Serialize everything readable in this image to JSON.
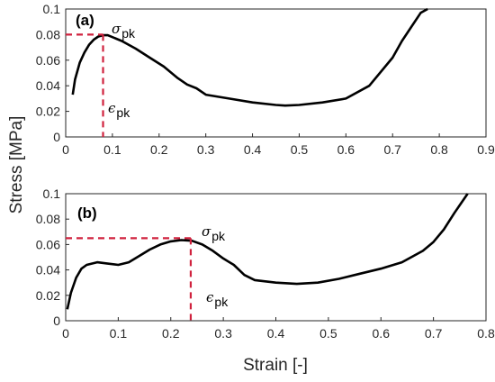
{
  "figure": {
    "ylabel": "Stress [MPa]",
    "xlabel": "Strain [-]"
  },
  "colors": {
    "curve": "#000000",
    "peak_marker": "#d0223e",
    "axis": "#262626"
  },
  "chart_data": [
    {
      "type": "line",
      "panel_label": "(a)",
      "xlim": [
        0,
        0.9
      ],
      "ylim": [
        0,
        0.1
      ],
      "xticks": [
        "0",
        "0.1",
        "0.2",
        "0.3",
        "0.4",
        "0.5",
        "0.6",
        "0.7",
        "0.8",
        "0.9"
      ],
      "yticks": [
        "0",
        "0.02",
        "0.04",
        "0.06",
        "0.08",
        "0.1"
      ],
      "xtick_values": [
        0,
        0.1,
        0.2,
        0.3,
        0.4,
        0.5,
        0.6,
        0.7,
        0.8,
        0.9
      ],
      "ytick_values": [
        0,
        0.02,
        0.04,
        0.06,
        0.08,
        0.1
      ],
      "grid": false,
      "series": [
        {
          "x": [
            0.015,
            0.02,
            0.03,
            0.04,
            0.05,
            0.06,
            0.07,
            0.08,
            0.09,
            0.1,
            0.12,
            0.15,
            0.18,
            0.21,
            0.24,
            0.26,
            0.28,
            0.3,
            0.35,
            0.4,
            0.45,
            0.47,
            0.5,
            0.55,
            0.6,
            0.65,
            0.7,
            0.72,
            0.74,
            0.76,
            0.775
          ],
          "y": [
            0.033,
            0.045,
            0.058,
            0.066,
            0.072,
            0.076,
            0.0785,
            0.0795,
            0.0795,
            0.078,
            0.075,
            0.069,
            0.062,
            0.055,
            0.046,
            0.041,
            0.038,
            0.033,
            0.03,
            0.027,
            0.025,
            0.0245,
            0.025,
            0.027,
            0.03,
            0.04,
            0.062,
            0.075,
            0.086,
            0.097,
            0.101
          ]
        }
      ],
      "peak": {
        "x": 0.08,
        "y": 0.08,
        "stress_label": "σ",
        "stress_sub": "pk",
        "strain_label": "ϵ",
        "strain_sub": "pk"
      }
    },
    {
      "type": "line",
      "panel_label": "(b)",
      "xlim": [
        0,
        0.8
      ],
      "ylim": [
        0,
        0.1
      ],
      "xticks": [
        "0",
        "0.1",
        "0.2",
        "0.3",
        "0.4",
        "0.5",
        "0.6",
        "0.7",
        "0.8"
      ],
      "yticks": [
        "0",
        "0.02",
        "0.04",
        "0.06",
        "0.08",
        "0.1"
      ],
      "xtick_values": [
        0,
        0.1,
        0.2,
        0.3,
        0.4,
        0.5,
        0.6,
        0.7,
        0.8
      ],
      "ytick_values": [
        0,
        0.02,
        0.04,
        0.06,
        0.08,
        0.1
      ],
      "grid": false,
      "series": [
        {
          "x": [
            0.003,
            0.01,
            0.02,
            0.03,
            0.04,
            0.06,
            0.08,
            0.1,
            0.12,
            0.14,
            0.16,
            0.18,
            0.2,
            0.22,
            0.24,
            0.26,
            0.28,
            0.3,
            0.32,
            0.34,
            0.36,
            0.4,
            0.44,
            0.48,
            0.52,
            0.56,
            0.6,
            0.64,
            0.68,
            0.7,
            0.72,
            0.74,
            0.765
          ],
          "y": [
            0.009,
            0.022,
            0.034,
            0.041,
            0.044,
            0.046,
            0.045,
            0.044,
            0.046,
            0.051,
            0.056,
            0.06,
            0.0625,
            0.0635,
            0.063,
            0.06,
            0.055,
            0.049,
            0.044,
            0.036,
            0.032,
            0.03,
            0.029,
            0.03,
            0.033,
            0.037,
            0.041,
            0.046,
            0.055,
            0.062,
            0.072,
            0.085,
            0.101
          ]
        }
      ],
      "peak": {
        "x": 0.238,
        "y": 0.065,
        "stress_label": "σ",
        "stress_sub": "pk",
        "strain_label": "ϵ",
        "strain_sub": "pk"
      }
    }
  ]
}
